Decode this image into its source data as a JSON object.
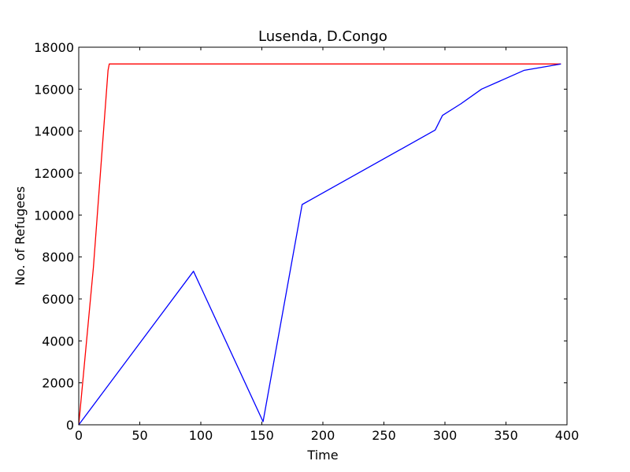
{
  "chart_data": {
    "type": "line",
    "title": "Lusenda, D.Congo",
    "xlabel": "Time",
    "ylabel": "No. of Refugees",
    "xlim": [
      0,
      400
    ],
    "ylim": [
      0,
      18000
    ],
    "xticks": [
      0,
      50,
      100,
      150,
      200,
      250,
      300,
      350,
      400
    ],
    "yticks": [
      0,
      2000,
      4000,
      6000,
      8000,
      10000,
      12000,
      14000,
      16000,
      18000
    ],
    "grid": false,
    "legend": "none",
    "series": [
      {
        "color": "#ff0000",
        "points": [
          [
            0,
            0
          ],
          [
            12,
            7500
          ],
          [
            24,
            16900
          ],
          [
            25,
            17200
          ],
          [
            395,
            17200
          ]
        ]
      },
      {
        "color": "#0000ff",
        "points": [
          [
            0,
            0
          ],
          [
            94,
            7320
          ],
          [
            151,
            150
          ],
          [
            183,
            10500
          ],
          [
            292,
            14050
          ],
          [
            298,
            14750
          ],
          [
            313,
            15300
          ],
          [
            330,
            16000
          ],
          [
            365,
            16900
          ],
          [
            395,
            17200
          ]
        ]
      }
    ]
  }
}
